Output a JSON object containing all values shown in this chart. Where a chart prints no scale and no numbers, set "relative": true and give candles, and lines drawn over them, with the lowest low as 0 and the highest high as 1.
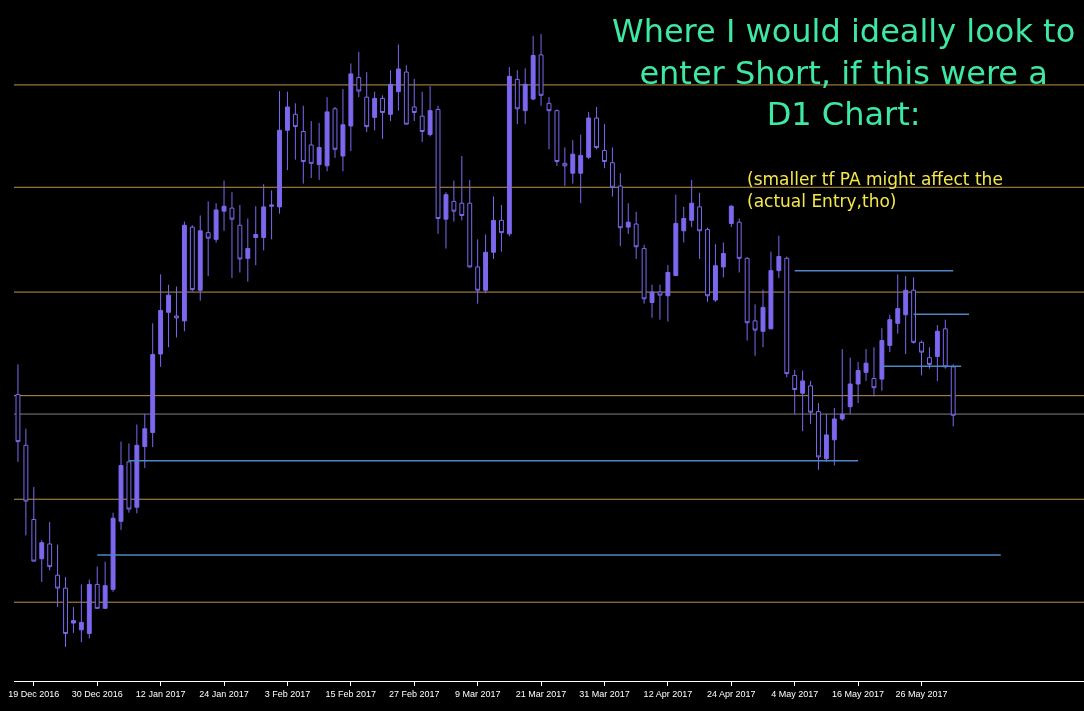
{
  "chart_data": {
    "type": "candlestick",
    "relative": true,
    "tick_labels": "x",
    "color": "#7b68ee",
    "annotations": [
      "Where I would ideally look to\nenter Short, if this were a\nD1 Chart:",
      "(smaller tf PA might affect the\n(actual Entry,tho)"
    ],
    "categories": [
      null,
      null,
      "19 Dec 2016",
      null,
      null,
      null,
      null,
      null,
      null,
      null,
      "30 Dec 2016",
      null,
      null,
      null,
      null,
      null,
      null,
      null,
      "12 Jan 2017",
      null,
      null,
      null,
      null,
      null,
      null,
      null,
      "24 Jan 2017",
      null,
      null,
      null,
      null,
      null,
      null,
      null,
      "3 Feb 2017",
      null,
      null,
      null,
      null,
      null,
      null,
      null,
      "15 Feb 2017",
      null,
      null,
      null,
      null,
      null,
      null,
      null,
      "27 Feb 2017",
      null,
      null,
      null,
      null,
      null,
      null,
      null,
      "9 Mar 2017",
      null,
      null,
      null,
      null,
      null,
      null,
      null,
      "21 Mar 2017",
      null,
      null,
      null,
      null,
      null,
      null,
      null,
      "31 Mar 2017",
      null,
      null,
      null,
      null,
      null,
      null,
      null,
      "12 Apr 2017",
      null,
      null,
      null,
      null,
      null,
      null,
      null,
      "24 Apr 2017",
      null,
      null,
      null,
      null,
      null,
      null,
      null,
      "4 May 2017",
      null,
      null,
      null,
      null,
      null,
      null,
      null,
      "16 May 2017",
      null,
      null,
      null,
      null,
      null,
      null,
      null,
      "26 May 2017",
      null,
      null,
      null,
      null,
      null,
      null,
      null,
      null,
      null,
      null,
      null,
      null,
      null,
      null,
      null,
      null,
      null,
      null,
      null,
      null
    ],
    "ohlc": [
      [
        0.412,
        0.461,
        0.302,
        0.335
      ],
      [
        0.329,
        0.356,
        0.182,
        0.238
      ],
      [
        0.208,
        0.261,
        0.139,
        0.14
      ],
      [
        0.144,
        0.174,
        0.106,
        0.17
      ],
      [
        0.168,
        0.204,
        0.125,
        0.131
      ],
      [
        0.117,
        0.167,
        0.065,
        0.096
      ],
      [
        0.096,
        0.114,
        0,
        0.022
      ],
      [
        0.039,
        0.065,
        0.023,
        0.043
      ],
      [
        0.028,
        0.102,
        0.008,
        0.04
      ],
      [
        0.022,
        0.11,
        0.014,
        0.102
      ],
      [
        0.102,
        0.131,
        0.062,
        0.063
      ],
      [
        0.063,
        0.139,
        0.062,
        0.1
      ],
      [
        0.094,
        0.219,
        0.09,
        0.21
      ],
      [
        0.205,
        0.335,
        0.191,
        0.296
      ],
      [
        0.302,
        0.332,
        0.219,
        0.225
      ],
      [
        0.228,
        0.363,
        0.218,
        0.329
      ],
      [
        0.327,
        0.38,
        0.292,
        0.356
      ],
      [
        0.35,
        0.528,
        0.326,
        0.477
      ],
      [
        0.478,
        0.608,
        0.457,
        0.549
      ],
      [
        0.546,
        0.591,
        0.489,
        0.574
      ],
      [
        0.54,
        0.588,
        0.505,
        0.537
      ],
      [
        0.532,
        0.694,
        0.515,
        0.688
      ],
      [
        0.685,
        0.688,
        0.58,
        0.583
      ],
      [
        0.582,
        0.704,
        0.565,
        0.679
      ],
      [
        0.676,
        0.727,
        0.605,
        0.667
      ],
      [
        0.665,
        0.724,
        0.66,
        0.713
      ],
      [
        0.711,
        0.761,
        0.679,
        0.719
      ],
      [
        0.716,
        0.742,
        0.602,
        0.698
      ],
      [
        0.688,
        0.721,
        0.611,
        0.633
      ],
      [
        0.634,
        0.699,
        0.596,
        0.65
      ],
      [
        0.668,
        0.719,
        0.623,
        0.673
      ],
      [
        0.668,
        0.755,
        0.647,
        0.718
      ],
      [
        0.719,
        0.745,
        0.665,
        0.721
      ],
      [
        0.718,
        0.907,
        0.707,
        0.843
      ],
      [
        0.843,
        0.906,
        0.778,
        0.881
      ],
      [
        0.869,
        0.887,
        0.795,
        0.849
      ],
      [
        0.841,
        0.883,
        0.756,
        0.792
      ],
      [
        0.819,
        0.858,
        0.765,
        0.789
      ],
      [
        0.787,
        0.855,
        0.762,
        0.815
      ],
      [
        0.785,
        0.897,
        0.776,
        0.873
      ],
      [
        0.878,
        0.881,
        0.798,
        0.812
      ],
      [
        0.801,
        0.91,
        0.776,
        0.852
      ],
      [
        0.85,
        0.952,
        0.809,
        0.935
      ],
      [
        0.929,
        0.971,
        0.897,
        0.907
      ],
      [
        0.897,
        0.938,
        0.84,
        0.849
      ],
      [
        0.864,
        0.906,
        0.843,
        0.895
      ],
      [
        0.895,
        0.9,
        0.829,
        0.872
      ],
      [
        0.869,
        0.941,
        0.858,
        0.918
      ],
      [
        0.906,
        0.983,
        0.875,
        0.943
      ],
      [
        0.938,
        0.949,
        0.852,
        0.853
      ],
      [
        0.881,
        0.927,
        0.858,
        0.872
      ],
      [
        0.866,
        0.906,
        0.824,
        0.841
      ],
      [
        0.836,
        0.915,
        0.833,
        0.875
      ],
      [
        0.877,
        0.883,
        0.674,
        0.699
      ],
      [
        0.698,
        0.742,
        0.65,
        0.738
      ],
      [
        0.727,
        0.761,
        0.694,
        0.711
      ],
      [
        0.724,
        0.801,
        0.696,
        0.704
      ],
      [
        0.724,
        0.762,
        0.619,
        0.62
      ],
      [
        0.62,
        0.665,
        0.56,
        0.582
      ],
      [
        0.582,
        0.673,
        0.577,
        0.644
      ],
      [
        0.644,
        0.735,
        0.633,
        0.696
      ],
      [
        0.696,
        0.721,
        0.645,
        0.676
      ],
      [
        0.674,
        0.946,
        0.67,
        0.931
      ],
      [
        0.926,
        0.941,
        0.853,
        0.878
      ],
      [
        0.875,
        0.944,
        0.853,
        0.918
      ],
      [
        0.894,
        0.997,
        0.892,
        0.965
      ],
      [
        0.966,
        1,
        0.883,
        0.9
      ],
      [
        0.887,
        0.897,
        0.812,
        0.875
      ],
      [
        0.875,
        0.877,
        0.785,
        0.792
      ],
      [
        0.789,
        0.815,
        0.752,
        0.785
      ],
      [
        0.773,
        0.827,
        0.756,
        0.804
      ],
      [
        0.773,
        0.836,
        0.724,
        0.802
      ],
      [
        0.799,
        0.873,
        0.796,
        0.863
      ],
      [
        0.863,
        0.881,
        0.812,
        0.815
      ],
      [
        0.81,
        0.853,
        0.781,
        0.792
      ],
      [
        0.79,
        0.815,
        0.735,
        0.75
      ],
      [
        0.752,
        0.773,
        0.654,
        0.684
      ],
      [
        0.685,
        0.724,
        0.674,
        0.693
      ],
      [
        0.69,
        0.71,
        0.633,
        0.653
      ],
      [
        0.65,
        0.656,
        0.56,
        0.568
      ],
      [
        0.562,
        0.591,
        0.537,
        0.579
      ],
      [
        0.579,
        0.591,
        0.534,
        0.574
      ],
      [
        0.573,
        0.623,
        0.531,
        0.611
      ],
      [
        0.606,
        0.738,
        0.605,
        0.691
      ],
      [
        0.679,
        0.718,
        0.66,
        0.699
      ],
      [
        0.696,
        0.762,
        0.685,
        0.724
      ],
      [
        0.718,
        0.741,
        0.633,
        0.679
      ],
      [
        0.681,
        0.684,
        0.563,
        0.573
      ],
      [
        0.566,
        0.657,
        0.563,
        0.622
      ],
      [
        0.62,
        0.66,
        0.603,
        0.642
      ],
      [
        0.691,
        0.721,
        0.685,
        0.719
      ],
      [
        0.693,
        0.699,
        0.611,
        0.634
      ],
      [
        0.634,
        0.636,
        0.5,
        0.529
      ],
      [
        0.532,
        0.559,
        0.475,
        0.517
      ],
      [
        0.515,
        0.583,
        0.489,
        0.554
      ],
      [
        0.519,
        0.645,
        0.519,
        0.614
      ],
      [
        0.614,
        0.671,
        0.602,
        0.637
      ],
      [
        0.634,
        0.637,
        0.44,
        0.446
      ],
      [
        0.443,
        0.452,
        0.38,
        0.42
      ],
      [
        0.414,
        0.451,
        0.352,
        0.434
      ],
      [
        0.426,
        0.434,
        0.364,
        0.383
      ],
      [
        0.384,
        0.398,
        0.289,
        0.31
      ],
      [
        0.307,
        0.38,
        0.302,
        0.346
      ],
      [
        0.338,
        0.39,
        0.296,
        0.372
      ],
      [
        0.372,
        0.486,
        0.369,
        0.38
      ],
      [
        0.392,
        0.472,
        0.38,
        0.429
      ],
      [
        0.429,
        0.465,
        0.398,
        0.451
      ],
      [
        0.448,
        0.486,
        0.434,
        0.463
      ],
      [
        0.438,
        0.489,
        0.409,
        0.423
      ],
      [
        0.437,
        0.52,
        0.418,
        0.5
      ],
      [
        0.492,
        0.542,
        0.481,
        0.534
      ],
      [
        0.528,
        0.608,
        0.511,
        0.552
      ],
      [
        0.542,
        0.605,
        0.478,
        0.582
      ],
      [
        0.582,
        0.603,
        0.495,
        0.497
      ],
      [
        0.497,
        0.5,
        0.443,
        0.481
      ],
      [
        0.472,
        0.489,
        0.454,
        0.461
      ],
      [
        0.474,
        0.525,
        0.434,
        0.515
      ],
      [
        0.519,
        0.534,
        0.454,
        0.457
      ],
      [
        0.457,
        0.461,
        0.36,
        0.378
      ],
      null,
      null,
      null,
      null,
      null,
      null,
      null,
      null,
      null,
      null,
      null,
      null,
      null,
      null,
      null,
      null
    ],
    "series": [
      {
        "type": "line",
        "color": "#4f86c6",
        "values": [
          null,
          null,
          null,
          null,
          null,
          null,
          null,
          null,
          null,
          null,
          null,
          null,
          null,
          null,
          null,
          null,
          null,
          null,
          null,
          null,
          null,
          null,
          null,
          null,
          null,
          null,
          null,
          null,
          null,
          null,
          null,
          null,
          null,
          null,
          null,
          null,
          null,
          null,
          null,
          null,
          null,
          null,
          null,
          null,
          null,
          null,
          null,
          null,
          null,
          null,
          null,
          null,
          null,
          null,
          null,
          null,
          null,
          null,
          null,
          null,
          null,
          null,
          null,
          null,
          null,
          null,
          null,
          null,
          null,
          null,
          null,
          null,
          null,
          null,
          null,
          null,
          null,
          null,
          null,
          null,
          null,
          null,
          null,
          null,
          null,
          null,
          null,
          null,
          null,
          null,
          null,
          null,
          null,
          null,
          null,
          null,
          null,
          null,
          0.614,
          0.614,
          0.614,
          0.614,
          0.614,
          0.614,
          0.614,
          0.614,
          0.614,
          0.614,
          0.614,
          0.614,
          0.614,
          0.614,
          0.614,
          0.614,
          0.614,
          0.614,
          0.614,
          0.614,
          0.614,
          null,
          null,
          null,
          null,
          null,
          null,
          null,
          null,
          null,
          null,
          null,
          null,
          null,
          null,
          null,
          null
        ]
      },
      {
        "type": "line",
        "color": "#4f86c6",
        "values": [
          null,
          null,
          null,
          null,
          null,
          null,
          null,
          null,
          null,
          null,
          null,
          null,
          null,
          null,
          null,
          null,
          null,
          null,
          null,
          null,
          null,
          null,
          null,
          null,
          null,
          null,
          null,
          null,
          null,
          null,
          null,
          null,
          null,
          null,
          null,
          null,
          null,
          null,
          null,
          null,
          null,
          null,
          null,
          null,
          null,
          null,
          null,
          null,
          null,
          null,
          null,
          null,
          null,
          null,
          null,
          null,
          null,
          null,
          null,
          null,
          null,
          null,
          null,
          null,
          null,
          null,
          null,
          null,
          null,
          null,
          null,
          null,
          null,
          null,
          null,
          null,
          null,
          null,
          null,
          null,
          null,
          null,
          null,
          null,
          null,
          null,
          null,
          null,
          null,
          null,
          null,
          null,
          null,
          null,
          null,
          null,
          null,
          null,
          null,
          null,
          null,
          null,
          null,
          null,
          null,
          null,
          null,
          null,
          null,
          null,
          null,
          null,
          null,
          0.543,
          0.543,
          0.543,
          0.543,
          0.543,
          0.543,
          0.543,
          0.543,
          null,
          null,
          null,
          null,
          null,
          null,
          null,
          null,
          null,
          null,
          null,
          null,
          null,
          null
        ]
      },
      {
        "type": "line",
        "color": "#4f86c6",
        "values": [
          null,
          null,
          null,
          null,
          null,
          null,
          null,
          null,
          null,
          null,
          null,
          null,
          null,
          null,
          null,
          null,
          null,
          null,
          null,
          null,
          null,
          null,
          null,
          null,
          null,
          null,
          null,
          null,
          null,
          null,
          null,
          null,
          null,
          null,
          null,
          null,
          null,
          null,
          null,
          null,
          null,
          null,
          null,
          null,
          null,
          null,
          null,
          null,
          null,
          null,
          null,
          null,
          null,
          null,
          null,
          null,
          null,
          null,
          null,
          null,
          null,
          null,
          null,
          null,
          null,
          null,
          null,
          null,
          null,
          null,
          null,
          null,
          null,
          null,
          null,
          null,
          null,
          null,
          null,
          null,
          null,
          null,
          null,
          null,
          null,
          null,
          null,
          null,
          null,
          null,
          null,
          null,
          null,
          null,
          null,
          null,
          null,
          null,
          null,
          null,
          null,
          null,
          null,
          null,
          null,
          null,
          null,
          null,
          null,
          0.458,
          0.458,
          0.458,
          0.458,
          0.458,
          0.458,
          0.458,
          0.458,
          0.458,
          0.458,
          0.458,
          null,
          null,
          null,
          null,
          null,
          null,
          null,
          null,
          null,
          null,
          null,
          null,
          null,
          null,
          null
        ]
      },
      {
        "type": "line",
        "color": "#4f86c6",
        "values": [
          null,
          null,
          null,
          null,
          null,
          null,
          null,
          null,
          null,
          null,
          null,
          null,
          null,
          null,
          0.304,
          0.304,
          0.304,
          0.304,
          0.304,
          0.304,
          0.304,
          0.304,
          0.304,
          0.304,
          0.304,
          0.304,
          0.304,
          0.304,
          0.304,
          0.304,
          0.304,
          0.304,
          0.304,
          0.304,
          0.304,
          0.304,
          0.304,
          0.304,
          0.304,
          0.304,
          0.304,
          0.304,
          0.304,
          0.304,
          0.304,
          0.304,
          0.304,
          0.304,
          0.304,
          0.304,
          0.304,
          0.304,
          0.304,
          0.304,
          0.304,
          0.304,
          0.304,
          0.304,
          0.304,
          0.304,
          0.304,
          0.304,
          0.304,
          0.304,
          0.304,
          0.304,
          0.304,
          0.304,
          0.304,
          0.304,
          0.304,
          0.304,
          0.304,
          0.304,
          0.304,
          0.304,
          0.304,
          0.304,
          0.304,
          0.304,
          0.304,
          0.304,
          0.304,
          0.304,
          0.304,
          0.304,
          0.304,
          0.304,
          0.304,
          0.304,
          0.304,
          0.304,
          0.304,
          0.304,
          0.304,
          0.304,
          0.304,
          0.304,
          0.304,
          0.304,
          0.304,
          0.304,
          0.304,
          0.304,
          0.304,
          0.304,
          0.304,
          null,
          null,
          null,
          null,
          null,
          null,
          null,
          null,
          null,
          null,
          null,
          null,
          null,
          null,
          null,
          null,
          null,
          null,
          null,
          null,
          null,
          null,
          null,
          null,
          null,
          null,
          null,
          null
        ]
      },
      {
        "type": "line",
        "color": "#4f86c6",
        "values": [
          null,
          null,
          null,
          null,
          null,
          null,
          null,
          null,
          null,
          null,
          0.15,
          0.15,
          0.15,
          0.15,
          0.15,
          0.15,
          0.15,
          0.15,
          0.15,
          0.15,
          0.15,
          0.15,
          0.15,
          0.15,
          0.15,
          0.15,
          0.15,
          0.15,
          0.15,
          0.15,
          0.15,
          0.15,
          0.15,
          0.15,
          0.15,
          0.15,
          0.15,
          0.15,
          0.15,
          0.15,
          0.15,
          0.15,
          0.15,
          0.15,
          0.15,
          0.15,
          0.15,
          0.15,
          0.15,
          0.15,
          0.15,
          0.15,
          0.15,
          0.15,
          0.15,
          0.15,
          0.15,
          0.15,
          0.15,
          0.15,
          0.15,
          0.15,
          0.15,
          0.15,
          0.15,
          0.15,
          0.15,
          0.15,
          0.15,
          0.15,
          0.15,
          0.15,
          0.15,
          0.15,
          0.15,
          0.15,
          0.15,
          0.15,
          0.15,
          0.15,
          0.15,
          0.15,
          0.15,
          0.15,
          0.15,
          0.15,
          0.15,
          0.15,
          0.15,
          0.15,
          0.15,
          0.15,
          0.15,
          0.15,
          0.15,
          0.15,
          0.15,
          0.15,
          0.15,
          0.15,
          0.15,
          0.15,
          0.15,
          0.15,
          0.15,
          0.15,
          0.15,
          0.15,
          0.15,
          0.15,
          0.15,
          0.15,
          0.15,
          0.15,
          0.15,
          0.15,
          0.15,
          0.15,
          0.15,
          0.15,
          0.15,
          0.15,
          0.15,
          0.15,
          0.15,
          null,
          null,
          null,
          null,
          null,
          null,
          null,
          null,
          null,
          null
        ]
      }
    ],
    "ref_lines": [
      {
        "axis": "y",
        "value": 0.917,
        "color": "#b8954a"
      },
      {
        "axis": "y",
        "value": 0.75,
        "color": "#b8954a"
      },
      {
        "axis": "y",
        "value": 0.579,
        "color": "#b8954a"
      },
      {
        "axis": "y",
        "value": 0.41,
        "color": "#b8954a"
      },
      {
        "axis": "y",
        "value": 0.241,
        "color": "#b8954a"
      },
      {
        "axis": "y",
        "value": 0.073,
        "color": "#b8954a"
      },
      {
        "axis": "y",
        "value": 0.38,
        "color": "#808080"
      }
    ]
  }
}
